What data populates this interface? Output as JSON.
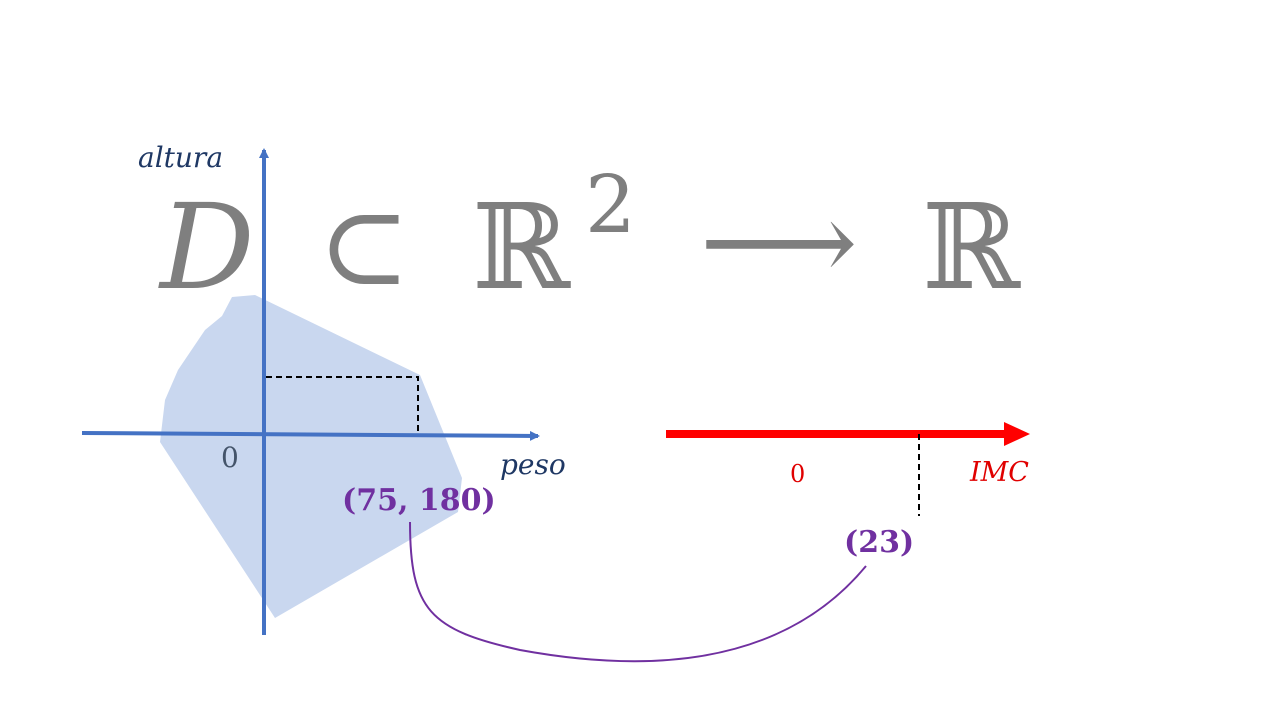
{
  "formula": {
    "domain_symbol": "D",
    "subset_symbol": "⊂",
    "space_symbol": "ℝ",
    "exponent": "2",
    "arrow_symbol": "⟶",
    "codomain_symbol": "ℝ"
  },
  "domain_plot": {
    "y_axis_label": "altura",
    "x_axis_label": "peso",
    "origin_label": "0",
    "point_label": "(75, 180)"
  },
  "codomain_line": {
    "axis_label": "IMC",
    "origin_label": "0",
    "image_label": "(23)"
  },
  "colors": {
    "formula": "#7f7f7f",
    "axis_blue": "#4472c4",
    "region_fill": "#c9d7ef",
    "label_blue": "#1f3864",
    "red_axis": "#ff0000",
    "purple": "#7030a0",
    "dashed": "#000000"
  }
}
